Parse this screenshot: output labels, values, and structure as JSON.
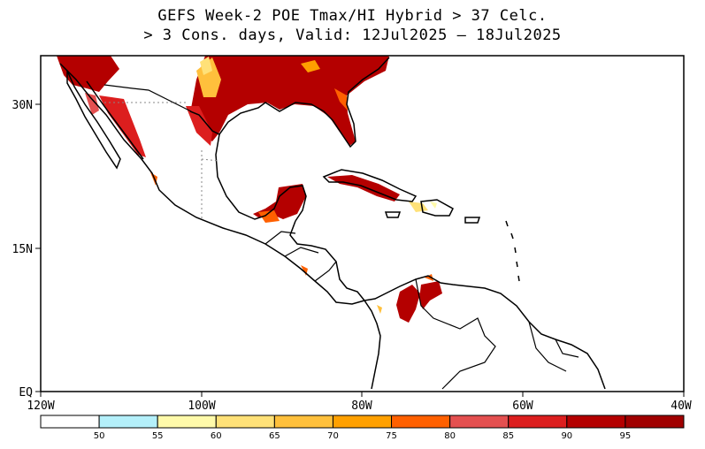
{
  "title": {
    "line1": "GEFS Week-2 POE Tmax/HI Hybrid > 37 Celc.",
    "line2": "> 3 Cons. days, Valid: 12Jul2025 – 18Jul2025"
  },
  "axes": {
    "lat_labels": [
      "30N",
      "15N",
      "EQ"
    ],
    "lon_labels": [
      "120W",
      "100W",
      "80W",
      "60W",
      "40W"
    ]
  },
  "colorbar": {
    "labels": [
      "50",
      "55",
      "60",
      "65",
      "70",
      "75",
      "80",
      "85",
      "90",
      "95"
    ],
    "colors": [
      "#ffffff",
      "#b4f0fa",
      "#fffaaa",
      "#ffe178",
      "#ffc03c",
      "#ffa000",
      "#ff6000",
      "#e45050",
      "#dc1e1e",
      "#b40000",
      "#a00000"
    ]
  },
  "map": {
    "extent": {
      "lon": [
        -120,
        -40
      ],
      "lat": [
        0,
        35
      ]
    },
    "colors": {
      "land_outline": "#000000",
      "ocean": "#ffffff",
      "border": "#000000"
    }
  }
}
